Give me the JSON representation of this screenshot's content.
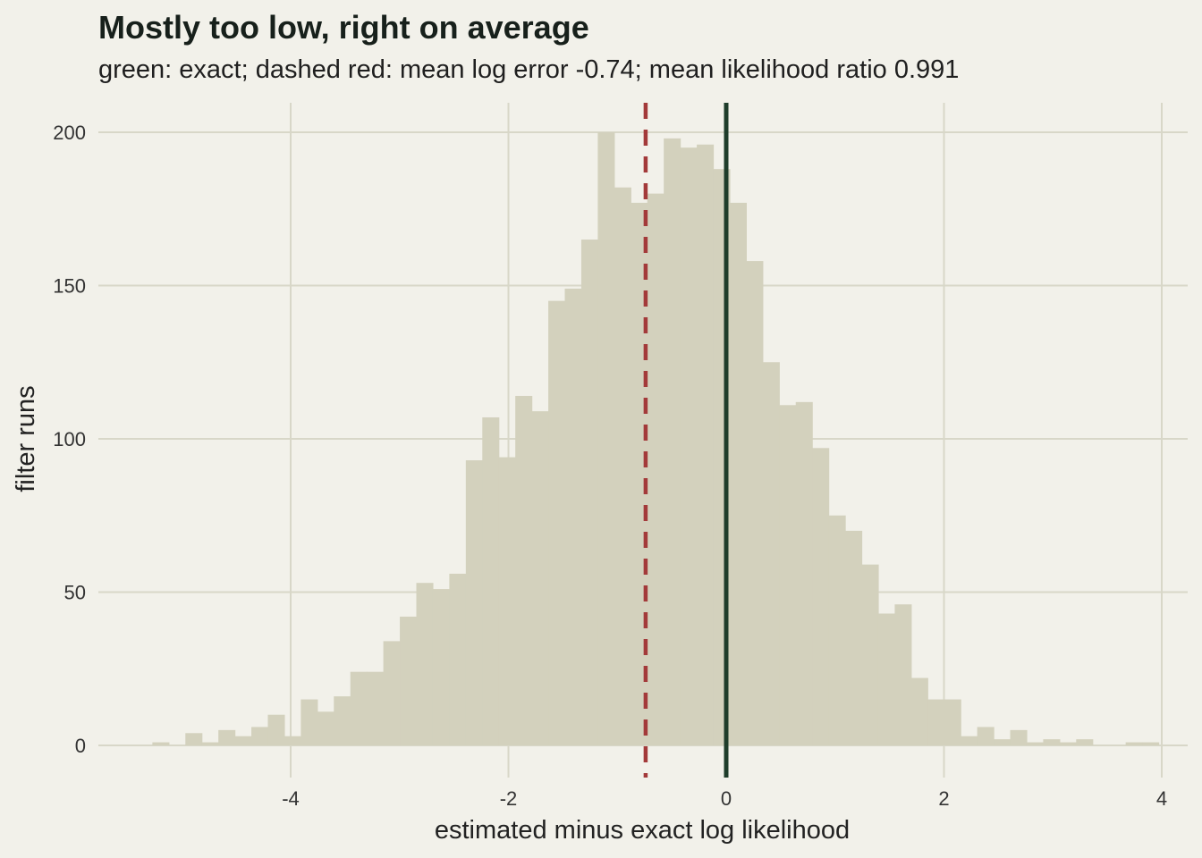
{
  "chart_data": {
    "type": "histogram",
    "title": "Mostly too low, right on average",
    "subtitle": "green: exact; dashed red: mean log error -0.74; mean likelihood ratio 0.991",
    "xlabel": "estimated minus exact log likelihood",
    "ylabel": "filter runs",
    "xlim": [
      -5.6,
      4.3
    ],
    "ylim": [
      -10,
      210
    ],
    "x_ticks": [
      -4,
      -2,
      0,
      2,
      4
    ],
    "y_ticks": [
      0,
      50,
      100,
      150,
      200
    ],
    "bin_start": -5.27,
    "bin_width": 0.1515,
    "counts": [
      1,
      0,
      4,
      1,
      5,
      3,
      6,
      10,
      3,
      15,
      11,
      16,
      24,
      24,
      34,
      42,
      53,
      51,
      56,
      93,
      107,
      94,
      114,
      109,
      145,
      149,
      165,
      200,
      182,
      177,
      180,
      198,
      195,
      196,
      188,
      177,
      158,
      125,
      111,
      112,
      97,
      75,
      70,
      59,
      43,
      46,
      22,
      15,
      15,
      3,
      6,
      2,
      5,
      1,
      2,
      1,
      2,
      0,
      0,
      1,
      1
    ],
    "reference_lines": [
      {
        "name": "exact",
        "x": 0,
        "style": "solid",
        "color": "#1f3d2b"
      },
      {
        "name": "mean log error",
        "x": -0.74,
        "style": "dashed",
        "color": "#a33a3a"
      }
    ],
    "grid": true,
    "colors": {
      "bars": "#d3d1bd",
      "grid": "#d8d7c8",
      "background": "#f2f1ea"
    }
  }
}
